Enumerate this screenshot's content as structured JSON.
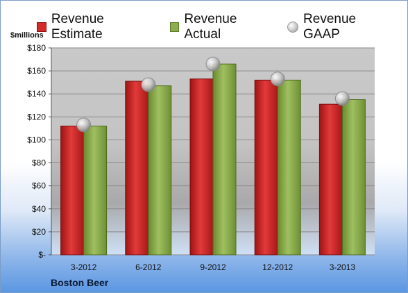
{
  "legend": {
    "estimate": "Revenue Estimate",
    "actual": "Revenue Actual",
    "gaap": "Revenue GAAP"
  },
  "units_label": "$millions",
  "company": "Boston Beer",
  "colors": {
    "estimate": "#d42a2a",
    "actual": "#8dae4f",
    "gaap": "#c8c8c8",
    "plot_bg_top": "#c9c9c9",
    "plot_bg_bottom": "#cfe0f5"
  },
  "chart_data": {
    "type": "bar",
    "title": "",
    "xlabel": "",
    "ylabel": "$millions",
    "categories": [
      "3-2012",
      "6-2012",
      "9-2012",
      "12-2012",
      "3-2013"
    ],
    "series": [
      {
        "name": "Revenue Estimate",
        "type": "bar",
        "values": [
          112,
          151,
          153,
          152,
          131
        ]
      },
      {
        "name": "Revenue Actual",
        "type": "bar",
        "values": [
          112,
          147,
          166,
          152,
          135
        ]
      },
      {
        "name": "Revenue GAAP",
        "type": "scatter",
        "values": [
          113,
          148,
          166,
          153,
          136
        ]
      }
    ],
    "ylim": [
      0,
      180
    ],
    "yticks": [
      0,
      20,
      40,
      60,
      80,
      100,
      120,
      140,
      160,
      180
    ],
    "ytick_labels": [
      "$-",
      "$20",
      "$40",
      "$60",
      "$80",
      "$100",
      "$120",
      "$140",
      "$160",
      "$180"
    ],
    "grid": true,
    "legend_position": "top"
  }
}
